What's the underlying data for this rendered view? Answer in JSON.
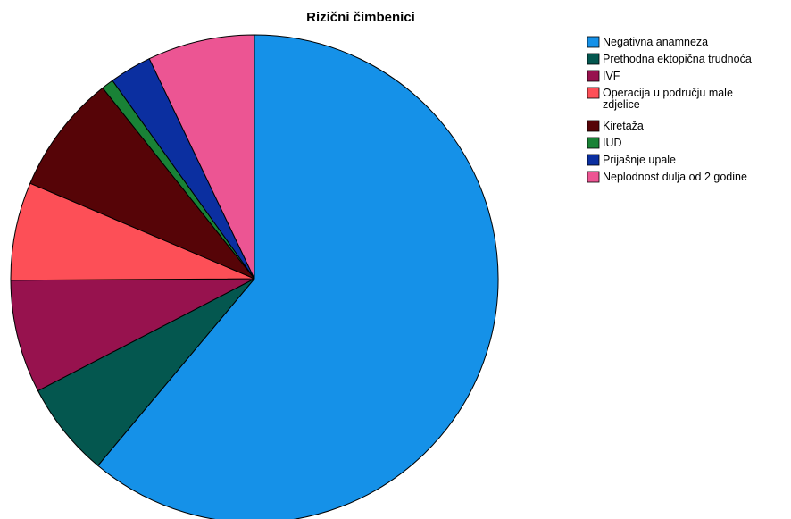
{
  "chart_data": {
    "type": "pie",
    "title": "Rizični čimbenici",
    "start_angle_deg": 0,
    "direction": "clockwise",
    "slices": [
      {
        "label": "Negativna anamneza",
        "value": 61.1,
        "color": "#1591E8"
      },
      {
        "label": "Prethodna ektopična trudnoća",
        "value": 6.3,
        "color": "#04574F"
      },
      {
        "label": "IVF",
        "value": 7.5,
        "color": "#97124E"
      },
      {
        "label": "Operacija u području male zdjelice",
        "label_lines": [
          "Operacija u području male",
          "zdjelice"
        ],
        "value": 6.5,
        "color": "#FD4F57"
      },
      {
        "label": "Kiretaža",
        "value": 7.9,
        "color": "#560407"
      },
      {
        "label": "IUD",
        "value": 0.8,
        "color": "#198236"
      },
      {
        "label": "Prijašnje upale",
        "value": 2.8,
        "color": "#0B2FA0"
      },
      {
        "label": "Neplodnost dulja od 2 godine",
        "value": 7.1,
        "color": "#EC5593"
      }
    ],
    "legend_position": "top-right"
  }
}
